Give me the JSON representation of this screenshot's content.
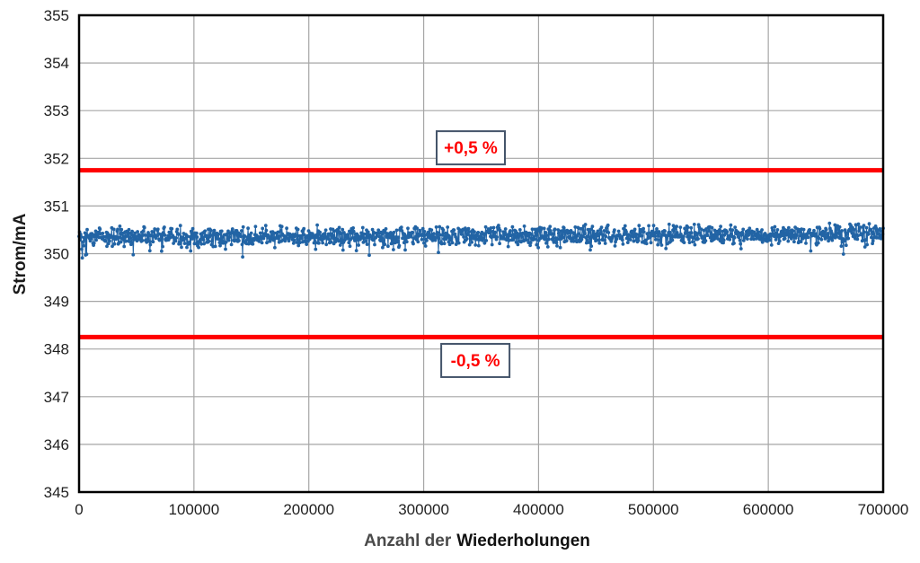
{
  "chart_data": {
    "type": "line-scatter",
    "title": "",
    "ylabel": "Strom/mA",
    "xlabel_prefix": "Anzahl der",
    "xlabel_main": "Wiederholungen",
    "x_min": 0,
    "x_max": 700000,
    "x_ticks": [
      0,
      100000,
      200000,
      300000,
      400000,
      500000,
      600000,
      700000
    ],
    "x_tick_labels": [
      "0",
      "100000",
      "200000",
      "300000",
      "400000",
      "500000",
      "600000",
      "700000"
    ],
    "y_min": 345,
    "y_max": 355,
    "y_ticks": [
      345,
      346,
      347,
      348,
      349,
      350,
      351,
      352,
      353,
      354,
      355
    ],
    "y_tick_labels": [
      "345",
      "346",
      "347",
      "348",
      "349",
      "350",
      "351",
      "352",
      "353",
      "354",
      "355"
    ],
    "grid": true,
    "grid_color": "#a6a6a6",
    "frame_color": "#000000",
    "background": "#ffffff",
    "legend": "none",
    "series": [
      {
        "name": "Strom",
        "color": "#2264a5",
        "marker": "circle",
        "marker_radius": 1.9,
        "mean": 350.35,
        "drift": 0.05,
        "noise_half_range": 0.25,
        "spike_probability": 0.06,
        "spike_extra_min": 0.05,
        "spike_extra_max": 0.33,
        "min_value": 349.7,
        "max_value": 350.72,
        "n_points": 1500,
        "seed": 9
      }
    ],
    "reference_lines": [
      {
        "id": "upper",
        "label": "+0,5 %",
        "value": 351.75,
        "color": "#ff0000",
        "stroke_width": 5
      },
      {
        "id": "lower",
        "label": "-0,5 %",
        "value": 348.25,
        "color": "#ff0000",
        "stroke_width": 5
      }
    ],
    "annotations": [
      {
        "id": "upper",
        "text": "+0,5 %",
        "x_value": 341000,
        "y_value": 352.22,
        "text_color": "#ff0000",
        "border_color": "#44546a",
        "fill_color": "#ffffff"
      },
      {
        "id": "lower",
        "text": "-0,5 %",
        "x_value": 345000,
        "y_value": 347.76,
        "text_color": "#ff0000",
        "border_color": "#44546a",
        "fill_color": "#ffffff"
      }
    ]
  }
}
